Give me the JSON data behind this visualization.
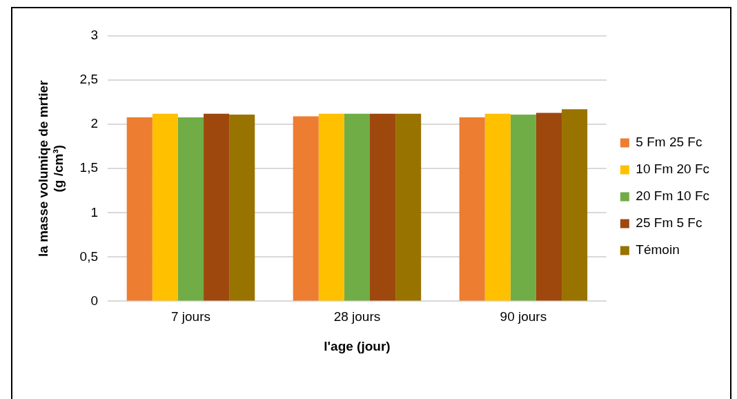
{
  "chart_data": {
    "type": "bar",
    "xlabel": "l'age (jour)",
    "ylabel": "la masse volumiqe de mrtier\n(g /cm³)",
    "categories": [
      "7 jours",
      "28 jours",
      "90 jours"
    ],
    "series": [
      {
        "name": "5 Fm 25 Fc",
        "color": "#ed7d31",
        "values": [
          2.08,
          2.09,
          2.08
        ]
      },
      {
        "name": "10 Fm 20 Fc",
        "color": "#ffc000",
        "values": [
          2.12,
          2.12,
          2.12
        ]
      },
      {
        "name": "20 Fm 10 Fc",
        "color": "#70ad47",
        "values": [
          2.08,
          2.12,
          2.11
        ]
      },
      {
        "name": "25 Fm 5 Fc",
        "color": "#9e480e",
        "values": [
          2.12,
          2.12,
          2.13
        ]
      },
      {
        "name": "Témoin",
        "color": "#997300",
        "values": [
          2.11,
          2.12,
          2.17
        ]
      }
    ],
    "ylim": [
      0,
      3
    ],
    "yticks": [
      0,
      {
        "value": 0.5,
        "label": "0,5"
      },
      1,
      {
        "value": 1.5,
        "label": "1,5"
      },
      2,
      {
        "value": 2.5,
        "label": "2,5"
      },
      3
    ],
    "grid": "y",
    "legend": "right"
  }
}
